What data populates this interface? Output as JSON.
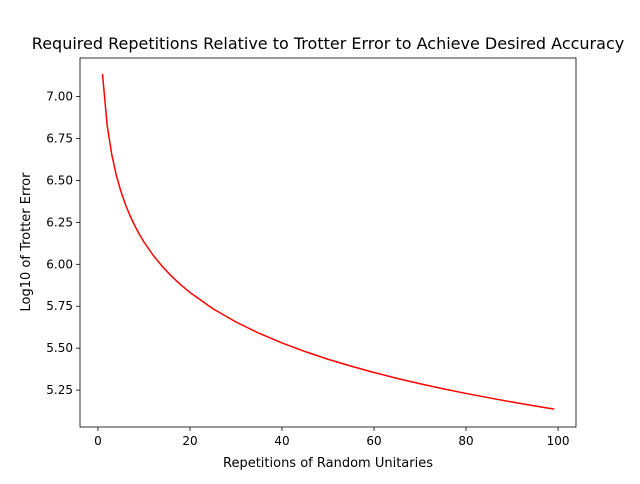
{
  "chart_data": {
    "type": "line",
    "title": "Required Repetitions Relative to Trotter Error to Achieve Desired Accuracy",
    "xlabel": "Repetitions of Random Unitaries",
    "ylabel": "Log10 of Trotter Error",
    "xlim": [
      -3.9,
      103.9
    ],
    "ylim": [
      5.03,
      7.23
    ],
    "x_ticks": [
      0,
      20,
      40,
      60,
      80,
      100
    ],
    "y_ticks": [
      5.25,
      5.5,
      5.75,
      6.0,
      6.25,
      6.5,
      6.75,
      7.0
    ],
    "x_tick_labels": [
      "0",
      "20",
      "40",
      "60",
      "80",
      "100"
    ],
    "y_tick_labels": [
      "5.25",
      "5.50",
      "5.75",
      "6.00",
      "6.25",
      "6.50",
      "6.75",
      "7.00"
    ],
    "grid": false,
    "legend": "none",
    "series": [
      {
        "color": "#ff0000",
        "x": [
          1,
          2,
          3,
          4,
          5,
          6,
          7,
          8,
          9,
          10,
          12,
          14,
          16,
          18,
          20,
          25,
          30,
          35,
          40,
          45,
          50,
          55,
          60,
          65,
          70,
          75,
          80,
          85,
          90,
          95,
          99
        ],
        "y": [
          7.13,
          6.83,
          6.655,
          6.53,
          6.434,
          6.355,
          6.288,
          6.23,
          6.179,
          6.133,
          6.054,
          5.987,
          5.929,
          5.878,
          5.832,
          5.735,
          5.656,
          5.589,
          5.531,
          5.48,
          5.434,
          5.393,
          5.355,
          5.32,
          5.288,
          5.258,
          5.23,
          5.204,
          5.179,
          5.155,
          5.137
        ]
      }
    ]
  }
}
